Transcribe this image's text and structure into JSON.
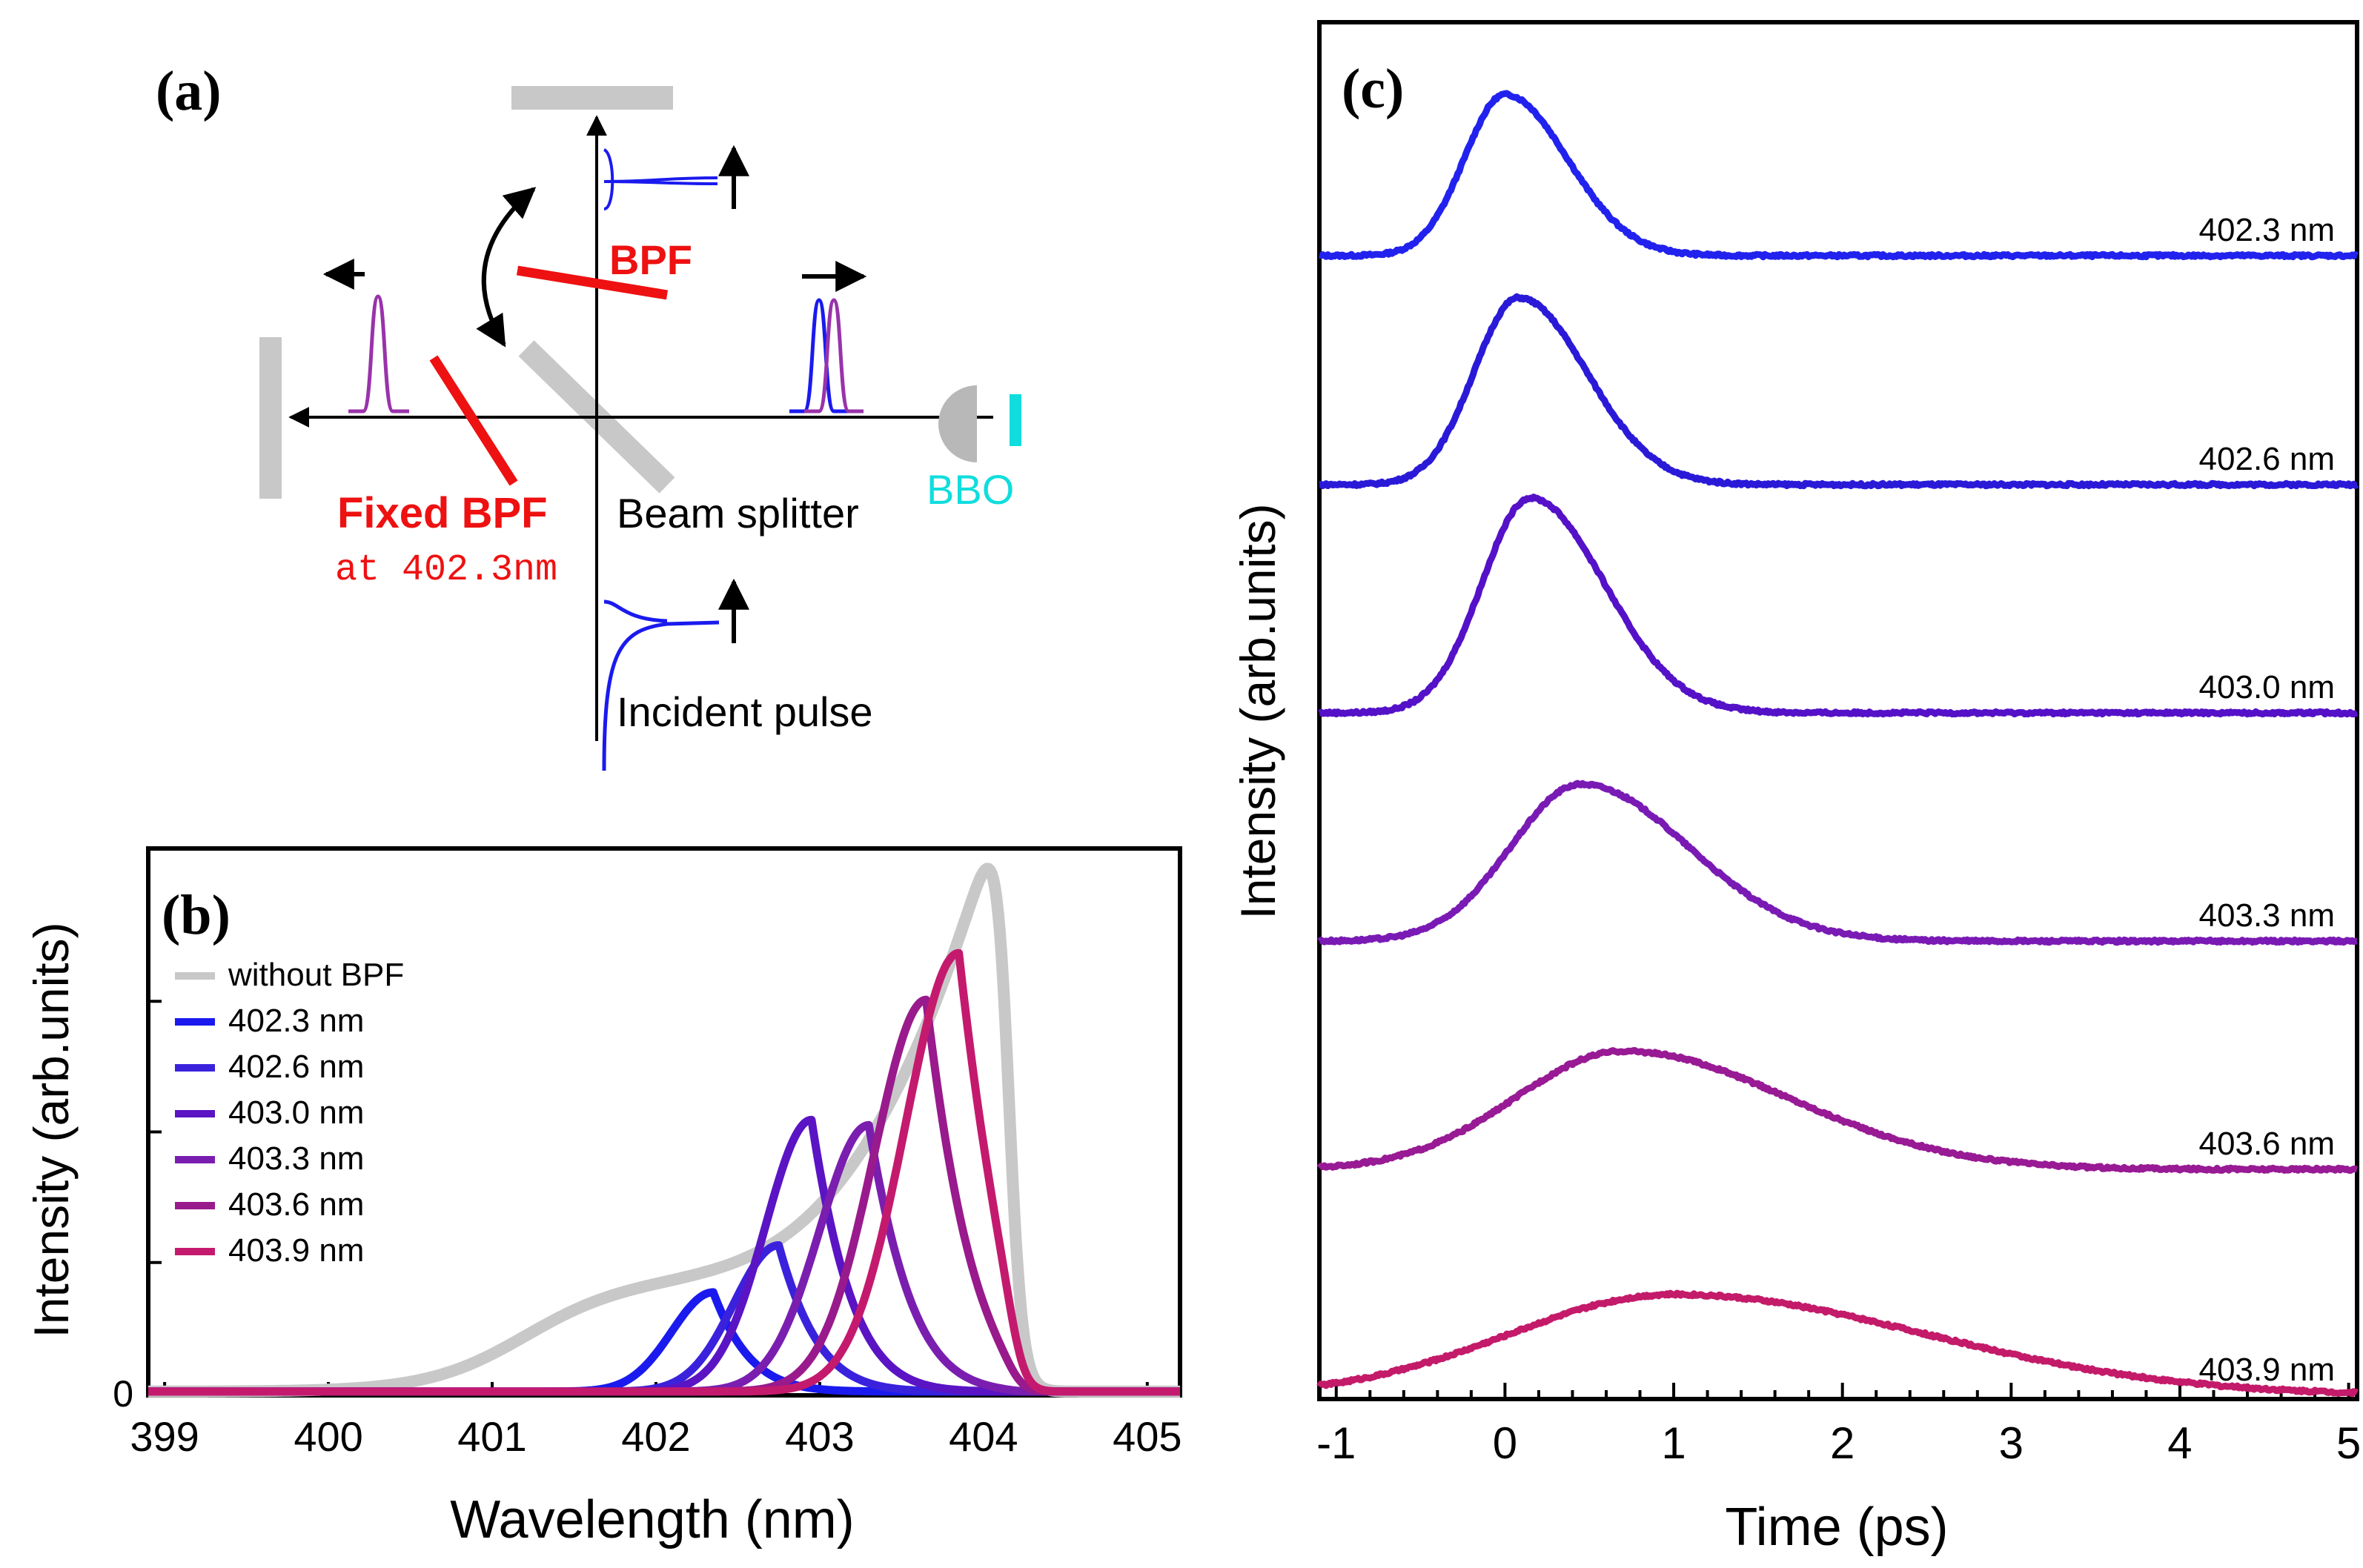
{
  "panel_a": {
    "label": "(a)",
    "bpf_label": "BPF",
    "fixed_bpf_label": "Fixed BPF",
    "fixed_bpf_sub": "at 402.3nm",
    "beam_splitter_label": "Beam splitter",
    "bbo_label": "BBO",
    "incident_label": "Incident pulse",
    "colors": {
      "red": "#ee1111",
      "cyan": "#11dddd",
      "gray": "#c8c8c8",
      "blue": "#1a1aee",
      "purple": "#9933aa"
    }
  },
  "chart_data": [
    {
      "panel": "(b)",
      "type": "line",
      "xlabel": "Wavelength (nm)",
      "ylabel": "Intensity (arb.units)",
      "xlim": [
        398.9,
        405.2
      ],
      "ylim": [
        0,
        1.0
      ],
      "xticks": [
        399,
        400,
        401,
        402,
        403,
        404,
        405
      ],
      "ytick_label_zero": "0",
      "legend_position": "top-left",
      "series": [
        {
          "name": "without BPF",
          "color": "#c8c8c8",
          "peak_x": 404.0,
          "peak_y": 1.0
        },
        {
          "name": "402.3  nm",
          "color": "#1a1aee",
          "peak_x": 402.35,
          "peak_y": 0.19
        },
        {
          "name": "402.6  nm",
          "color": "#3a22dd",
          "peak_x": 402.75,
          "peak_y": 0.28
        },
        {
          "name": "403.0  nm",
          "color": "#5a14c4",
          "peak_x": 402.95,
          "peak_y": 0.52
        },
        {
          "name": "403.3  nm",
          "color": "#7a1eb0",
          "peak_x": 403.3,
          "peak_y": 0.51
        },
        {
          "name": "403.6  nm",
          "color": "#991a8c",
          "peak_x": 403.65,
          "peak_y": 0.75
        },
        {
          "name": "403.9  nm",
          "color": "#c41a6e",
          "peak_x": 403.85,
          "peak_y": 0.84
        }
      ]
    },
    {
      "panel": "(c)",
      "type": "line",
      "xlabel": "Time (ps)",
      "ylabel": "Intensity (arb.units)",
      "xlim": [
        -1.1,
        5.05
      ],
      "xticks": [
        -1,
        0,
        1,
        2,
        3,
        4,
        5
      ],
      "series": [
        {
          "name": "402.3 nm",
          "color": "#2222ee",
          "peak_t": 0.0,
          "width": 0.32,
          "amp": 0.75
        },
        {
          "name": "402.6 nm",
          "color": "#2a1ad8",
          "peak_t": 0.08,
          "width": 0.35,
          "amp": 0.87
        },
        {
          "name": "403.0 nm",
          "color": "#5511c8",
          "peak_t": 0.15,
          "width": 0.38,
          "amp": 1.0
        },
        {
          "name": "403.3 nm",
          "color": "#7a1ab4",
          "peak_t": 0.45,
          "width": 0.55,
          "amp": 0.73
        },
        {
          "name": "403.6 nm",
          "color": "#981a94",
          "peak_t": 0.7,
          "width": 0.85,
          "amp": 0.55
        },
        {
          "name": "403.9 nm",
          "color": "#c41a6a",
          "peak_t": 1.0,
          "width": 1.3,
          "amp": 0.47
        }
      ]
    }
  ]
}
